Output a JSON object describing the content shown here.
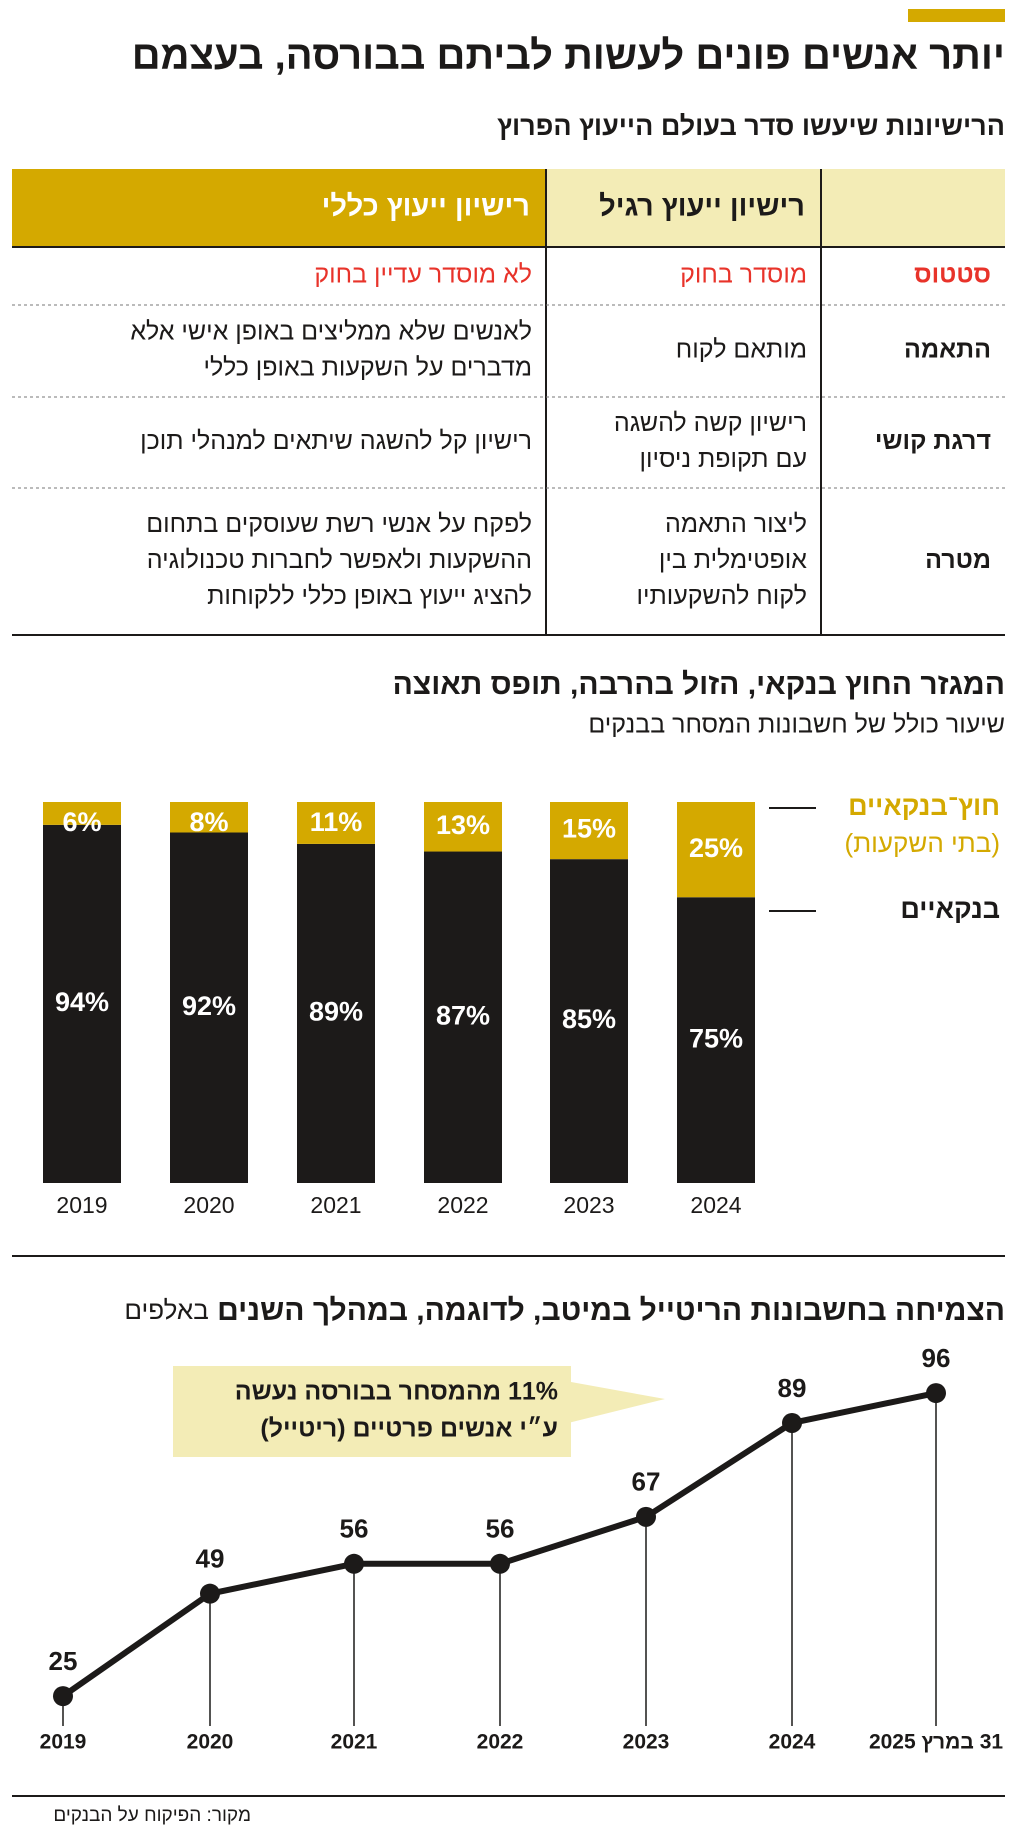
{
  "header": {
    "title": "יותר אנשים פונים לעשות לביתם בבורסה, בעצמם",
    "subtitle": "הרישיונות שיעשו סדר בעולם  הייעוץ הפרוץ"
  },
  "table": {
    "headers": [
      "רישיון ייעוץ רגיל",
      "רישיון ייעוץ כללי"
    ],
    "header_colors": [
      "#f3ecb6",
      "#d4a900"
    ],
    "rows": [
      {
        "label": "סטטוס",
        "color": "#e8332a",
        "cells": [
          [
            "מוסדר בחוק"
          ],
          [
            "לא מוסדר עדיין בחוק"
          ]
        ]
      },
      {
        "label": "התאמה",
        "cells": [
          [
            "מותאם לקוח"
          ],
          [
            "לאנשים שלא ממליצים באופן אישי אלא",
            "מדברים על השקעות באופן כללי"
          ]
        ]
      },
      {
        "label": "דרגת קושי",
        "cells": [
          [
            "רישיון קשה להשגה",
            "עם תקופת ניסיון"
          ],
          [
            "רישיון קל להשגה שיתאים למנהלי תוכן"
          ]
        ]
      },
      {
        "label": "מטרה",
        "cells": [
          [
            "ליצור התאמה",
            "אופטימלית בין",
            "לקוח להשקעותיו"
          ],
          [
            "לפקח על אנשי רשת שעוסקים בתחום",
            "ההשקעות ולאפשר לחברות טכנולוגיה",
            "להציג ייעוץ באופן כללי ללקוחות"
          ]
        ]
      }
    ]
  },
  "chart_data": [
    {
      "type": "stacked-bar",
      "title": "המגזר החוץ בנקאי, הזול בהרבה, תופס תאוצה",
      "subtitle": "שיעור כולל של חשבונות המסחר בבנקים",
      "categories": [
        "2019",
        "2020",
        "2021",
        "2022",
        "2023",
        "2024"
      ],
      "ylim": [
        0,
        100
      ],
      "series": [
        {
          "name": "בנקאיים",
          "color": "#1c1a19",
          "values": [
            94,
            92,
            89,
            87,
            85,
            75
          ],
          "value_labels": [
            "94%",
            "92%",
            "89%",
            "87%",
            "85%",
            "75%"
          ]
        },
        {
          "name": "חוץ־בנקאיים",
          "color": "#d4a900",
          "values": [
            6,
            8,
            11,
            13,
            15,
            25
          ],
          "value_labels": [
            "6%",
            "8%",
            "11%",
            "13%",
            "15%",
            "25%"
          ]
        }
      ],
      "legend_note": "(בתי השקעות)",
      "legend": "right"
    },
    {
      "type": "line",
      "title": "הצמיחה בחשבונות הריטייל במיטב, לדוגמה, במהלך השנים",
      "unit": "באלפים",
      "categories": [
        "2019",
        "2020",
        "2021",
        "2022",
        "2023",
        "2024",
        "31 במרץ 2025"
      ],
      "values": [
        25,
        49,
        56,
        56,
        67,
        89,
        96
      ],
      "ylim": [
        18,
        100
      ],
      "color": "#1c1a19",
      "annotation": [
        "11% מהמסחר בבורסה נעשה",
        "ע״י אנשים פרטיים (ריטייל)"
      ]
    }
  ],
  "source": "מקור: הפיקוח על הבנקים"
}
